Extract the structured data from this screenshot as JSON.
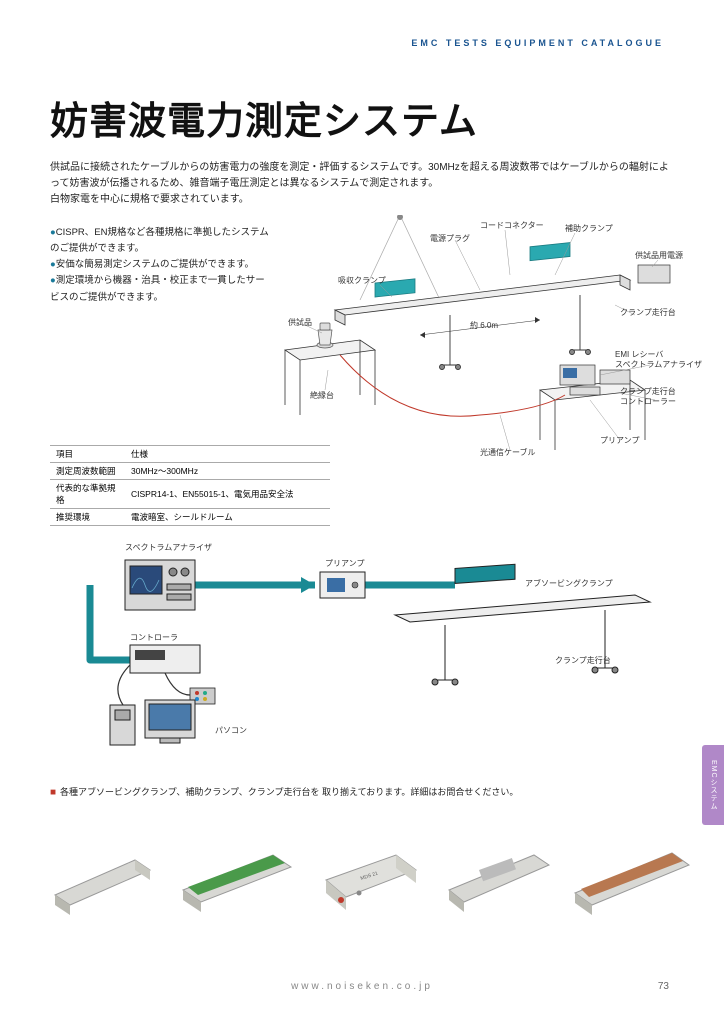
{
  "header": "EMC TESTS EQUIPMENT CATALOGUE",
  "title": "妨害波電力測定システム",
  "intro": "供試品に接続されたケーブルからの妨害電力の強度を測定・評価するシステムです。30MHzを超える周波数帯ではケーブルからの輻射によって妨害波が伝播されるため、雑音端子電圧測定とは異なるシステムで測定されます。\n白物家電を中心に規格で要求されています。",
  "features": [
    "CISPR、EN規格など各種規格に準拠したシステムのご提供ができます。",
    "安価な簡易測定システムのご提供ができます。",
    "測定環境から機器・治具・校正まで一貫したサービスのご提供ができます。"
  ],
  "spec_table": {
    "header": [
      "項目",
      "仕様"
    ],
    "rows": [
      [
        "測定周波数範囲",
        "30MHz～300MHz"
      ],
      [
        "代表的な準拠規格",
        "CISPR14-1、EN55015-1、電気用品安全法"
      ],
      [
        "推奨環境",
        "電波暗室、シールドルーム"
      ]
    ]
  },
  "diagram1": {
    "labels": {
      "cord_connector": "コードコネクター",
      "power_plug": "電源プラグ",
      "aux_clamp": "補助クランプ",
      "eut_power": "供試品用電源",
      "absorb_clamp": "吸収クランプ",
      "eut": "供試品",
      "insulated_table": "絶縁台",
      "length": "約 6.0m",
      "clamp_rail": "クランプ走行台",
      "emi_receiver": "EMI レシーバ\nスペクトラムアナライザ",
      "clamp_controller": "クランプ走行台\nコントローラー",
      "preamp": "プリアンプ",
      "optical_cable": "光通信ケーブル"
    },
    "colors": {
      "highlight": "#2aa9b0",
      "line": "#555",
      "ruler": "#c0392b",
      "table_fill": "#f2f2f2",
      "stroke": "#333"
    }
  },
  "diagram2": {
    "labels": {
      "spectrum": "スペクトラムアナライザ",
      "preamp": "プリアンプ",
      "absorbing_clamp": "アブソービングクランプ",
      "controller": "コントローラ",
      "clamp_rail": "クランプ走行台",
      "pc": "パソコン"
    },
    "colors": {
      "cable_thick": "#1a8a94",
      "cable_thin": "#333",
      "arrow": "#1a8a94",
      "equipment_fill": "#e8e8e8",
      "screen": "#3a6ea5",
      "stroke": "#222"
    }
  },
  "note": "各種アブソービングクランプ、補助クランプ、クランプ走行台を 取り揃えております。詳細はお問合せください。",
  "side_tab": "EMCシステム",
  "footer_url": "www.noiseken.co.jp",
  "page_num": "73",
  "product_colors": {
    "body_light": "#d8d8d4",
    "body_dark": "#b8b8b0",
    "green": "#4a9a4a",
    "copper": "#b87850",
    "red_tip": "#c0392b"
  }
}
